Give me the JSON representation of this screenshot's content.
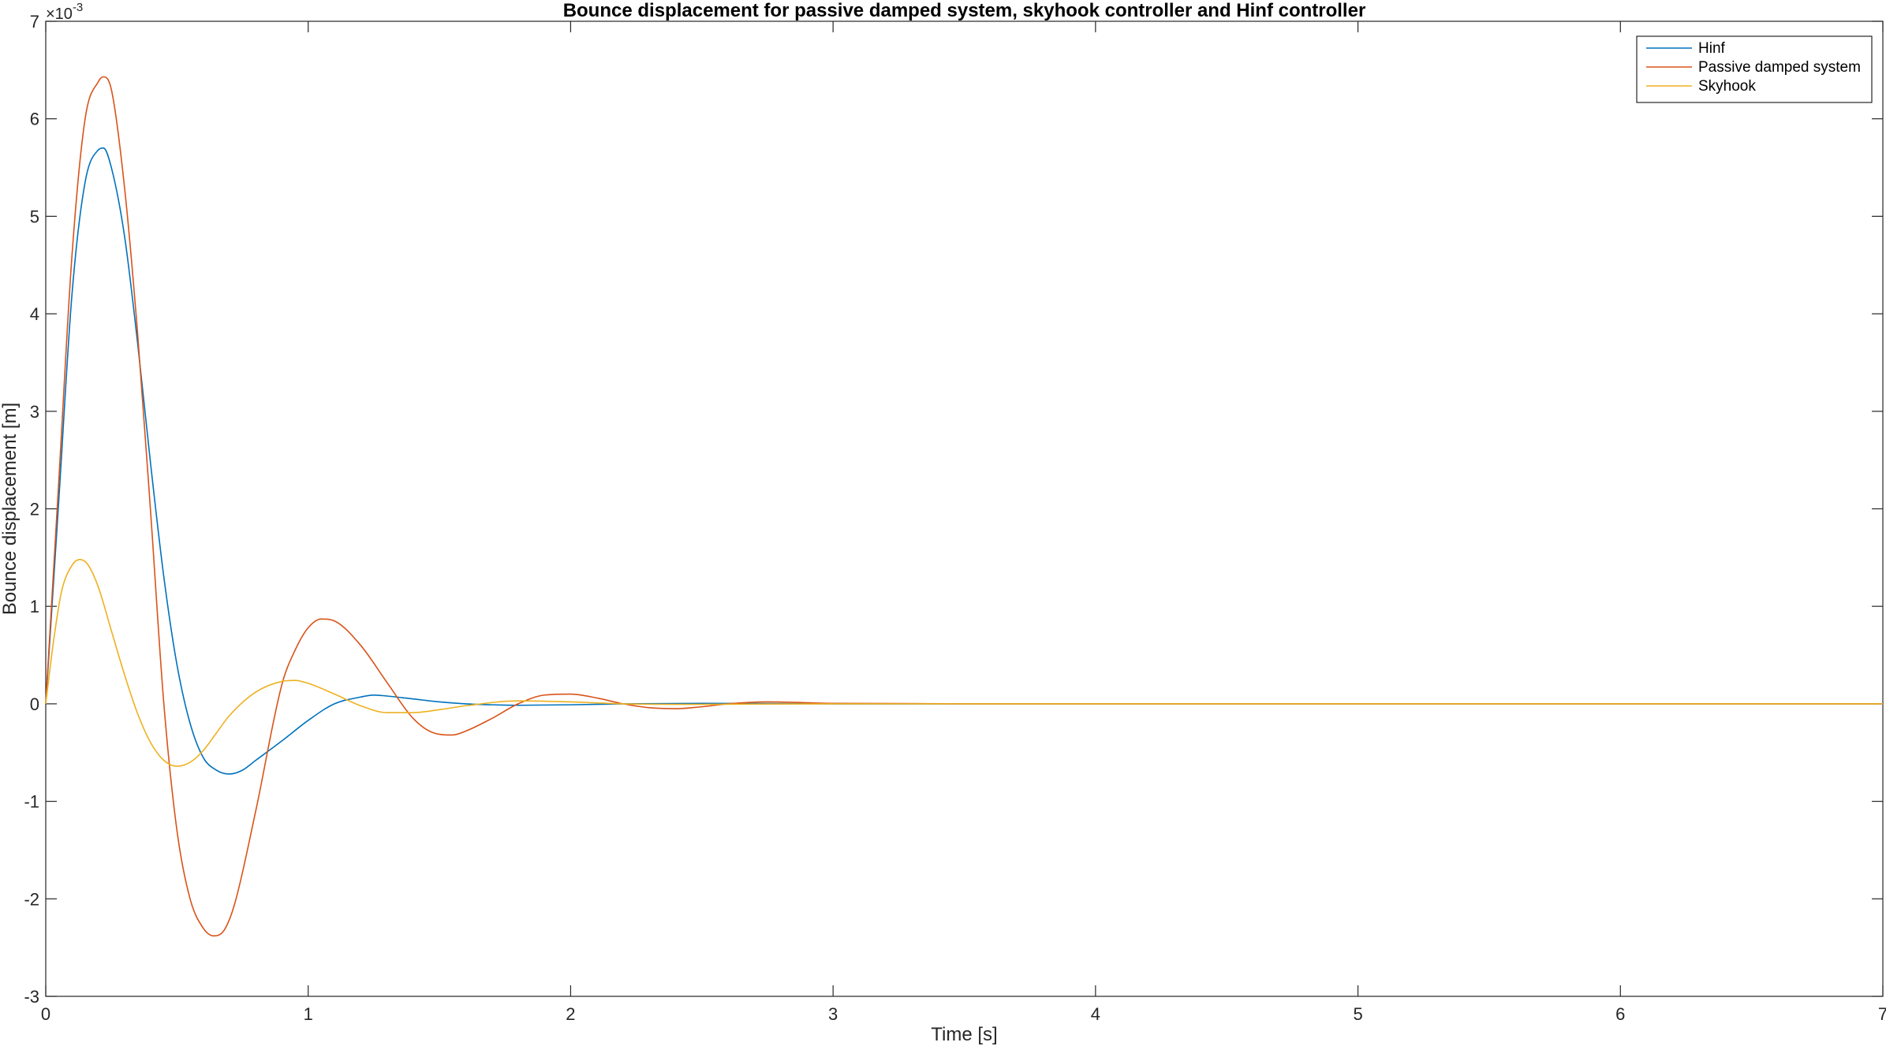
{
  "chart_data": {
    "type": "line",
    "title": "Bounce displacement for passive damped system, skyhook controller and Hinf controller",
    "xlabel": "Time [s]",
    "ylabel": "Bounce displacement [m]",
    "y_exponent": "×10",
    "y_exponent_power": "-3",
    "xlim": [
      0,
      7
    ],
    "ylim": [
      -3,
      7
    ],
    "xticks": [
      0,
      1,
      2,
      3,
      4,
      5,
      6,
      7
    ],
    "yticks": [
      -3,
      -2,
      -1,
      0,
      1,
      2,
      3,
      4,
      5,
      6,
      7
    ],
    "grid": false,
    "legend_position": "top-right",
    "series": [
      {
        "name": "Hinf",
        "color": "#0072BD",
        "x": [
          0,
          0.05,
          0.1,
          0.15,
          0.2,
          0.22,
          0.25,
          0.3,
          0.35,
          0.4,
          0.45,
          0.5,
          0.55,
          0.6,
          0.65,
          0.7,
          0.75,
          0.8,
          0.9,
          1.0,
          1.1,
          1.2,
          1.25,
          1.3,
          1.4,
          1.5,
          1.6,
          1.7,
          1.8,
          2.0,
          2.2,
          2.5,
          3.0,
          4.0,
          5.0,
          6.0,
          7.0
        ],
        "y": [
          0,
          2.1,
          4.2,
          5.35,
          5.68,
          5.7,
          5.5,
          4.8,
          3.7,
          2.45,
          1.3,
          0.4,
          -0.2,
          -0.55,
          -0.68,
          -0.72,
          -0.68,
          -0.58,
          -0.38,
          -0.17,
          0.0,
          0.07,
          0.09,
          0.08,
          0.05,
          0.02,
          0.0,
          -0.01,
          -0.015,
          -0.01,
          0.0,
          0.005,
          0.0,
          0.0,
          0.0,
          0.0,
          0.0
        ]
      },
      {
        "name": "Passive damped system",
        "color": "#D95319",
        "x": [
          0,
          0.05,
          0.1,
          0.15,
          0.2,
          0.22,
          0.25,
          0.3,
          0.35,
          0.4,
          0.45,
          0.5,
          0.55,
          0.6,
          0.64,
          0.68,
          0.72,
          0.8,
          0.9,
          0.95,
          1.0,
          1.05,
          1.1,
          1.2,
          1.3,
          1.4,
          1.48,
          1.55,
          1.6,
          1.7,
          1.8,
          1.9,
          2.0,
          2.1,
          2.2,
          2.3,
          2.4,
          2.5,
          2.6,
          2.75,
          3.0,
          3.5,
          4.0,
          5.0,
          6.0,
          7.0
        ],
        "y": [
          0,
          2.3,
          4.6,
          6.0,
          6.38,
          6.43,
          6.3,
          5.3,
          3.8,
          1.95,
          0.0,
          -1.3,
          -2.0,
          -2.3,
          -2.38,
          -2.32,
          -2.05,
          -1.1,
          0.2,
          0.55,
          0.78,
          0.87,
          0.85,
          0.6,
          0.22,
          -0.15,
          -0.3,
          -0.32,
          -0.28,
          -0.15,
          0.0,
          0.09,
          0.1,
          0.06,
          0.0,
          -0.04,
          -0.05,
          -0.03,
          0.0,
          0.02,
          0.005,
          0.0,
          0.0,
          0.0,
          0.0,
          0.0
        ]
      },
      {
        "name": "Skyhook",
        "color": "#EDB120",
        "x": [
          0,
          0.03,
          0.06,
          0.1,
          0.13,
          0.16,
          0.2,
          0.25,
          0.3,
          0.35,
          0.4,
          0.45,
          0.5,
          0.55,
          0.6,
          0.65,
          0.7,
          0.8,
          0.9,
          0.95,
          1.0,
          1.1,
          1.2,
          1.3,
          1.4,
          1.5,
          1.6,
          1.8,
          2.0,
          2.2,
          2.5,
          3.0,
          4.0,
          5.0,
          6.0,
          7.0
        ],
        "y": [
          0,
          0.65,
          1.15,
          1.42,
          1.48,
          1.43,
          1.2,
          0.75,
          0.3,
          -0.1,
          -0.4,
          -0.58,
          -0.64,
          -0.6,
          -0.48,
          -0.3,
          -0.12,
          0.12,
          0.23,
          0.24,
          0.21,
          0.1,
          -0.02,
          -0.09,
          -0.09,
          -0.06,
          -0.02,
          0.03,
          0.02,
          0.0,
          -0.005,
          0.0,
          0.0,
          0.0,
          0.0,
          0.0
        ]
      }
    ]
  }
}
